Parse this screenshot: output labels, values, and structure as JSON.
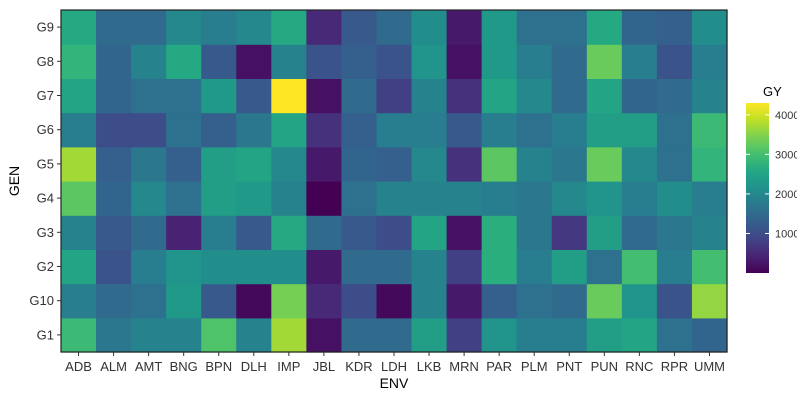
{
  "chart_data": {
    "type": "heatmap",
    "xlabel": "ENV",
    "ylabel": "GEN",
    "x_categories": [
      "ADB",
      "ALM",
      "AMT",
      "BNG",
      "BPN",
      "DLH",
      "IMP",
      "JBL",
      "KDR",
      "LDH",
      "LKB",
      "MRN",
      "PAR",
      "PLM",
      "PNT",
      "PUN",
      "RNC",
      "RPR",
      "UMM"
    ],
    "y_categories": [
      "G1",
      "G10",
      "G2",
      "G3",
      "G4",
      "G5",
      "G6",
      "G7",
      "G8",
      "G9"
    ],
    "colorbar": {
      "title": "GY",
      "ticks": [
        1000,
        2000,
        3000,
        4000
      ],
      "min": 0,
      "max": 4300,
      "palette": "viridis"
    },
    "grid": false,
    "values": [
      [
        2900,
        1700,
        1900,
        1900,
        3100,
        1900,
        3700,
        200,
        1500,
        1500,
        2400,
        800,
        2200,
        1800,
        1800,
        2400,
        2500,
        1600,
        1400
      ],
      [
        1800,
        1500,
        1600,
        2300,
        1200,
        100,
        3400,
        500,
        1000,
        100,
        1900,
        300,
        1300,
        1600,
        1500,
        3300,
        2200,
        1100,
        3600
      ],
      [
        2500,
        1100,
        1800,
        2200,
        2100,
        2100,
        2100,
        300,
        1500,
        1500,
        1900,
        800,
        2700,
        1800,
        2400,
        1600,
        3000,
        1800,
        3000
      ],
      [
        1900,
        1200,
        1500,
        400,
        1800,
        1200,
        2600,
        1500,
        1200,
        1000,
        2500,
        200,
        2700,
        1700,
        700,
        2400,
        1500,
        1700,
        1900
      ],
      [
        3200,
        1400,
        2000,
        1600,
        2400,
        2300,
        1900,
        0,
        1600,
        1900,
        1900,
        1900,
        1800,
        1700,
        2000,
        2200,
        1800,
        2100,
        1800
      ],
      [
        3700,
        1300,
        1700,
        1300,
        2400,
        2500,
        2000,
        300,
        1400,
        1300,
        2000,
        600,
        3200,
        1900,
        1700,
        3300,
        2000,
        1600,
        2800
      ],
      [
        1800,
        1000,
        1000,
        1600,
        1300,
        1700,
        2500,
        600,
        1300,
        1800,
        1800,
        1200,
        1800,
        1600,
        1800,
        2400,
        2400,
        1600,
        2900
      ],
      [
        2500,
        1400,
        1600,
        1600,
        2300,
        1200,
        4300,
        200,
        1500,
        800,
        1900,
        600,
        2500,
        2000,
        1500,
        2500,
        1400,
        1500,
        1900
      ],
      [
        2800,
        1400,
        1900,
        2600,
        1200,
        200,
        1900,
        1100,
        1300,
        1100,
        2200,
        200,
        2300,
        1800,
        1500,
        3300,
        1800,
        1100,
        1800
      ],
      [
        2600,
        1500,
        1500,
        2000,
        1800,
        2000,
        2600,
        500,
        1200,
        1500,
        2100,
        300,
        2300,
        1600,
        1600,
        2600,
        1400,
        1300,
        2100
      ]
    ]
  }
}
